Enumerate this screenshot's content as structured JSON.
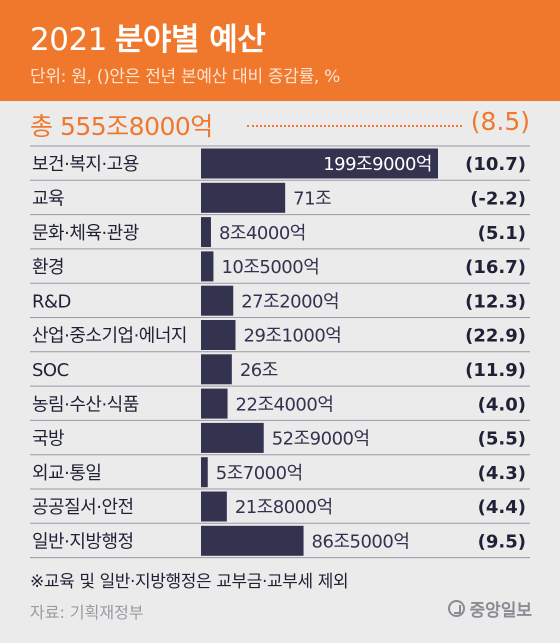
{
  "header": {
    "year": "2021",
    "title": "분야별 예산",
    "subtitle": "단위: 원, ()안은 전년 본예산 대비 증감률, %"
  },
  "total": {
    "label": "총 555조8000억",
    "change": "(8.5)"
  },
  "colors": {
    "accent": "#f0782d",
    "bar": "#33334f",
    "background": "#ecebeb"
  },
  "chart_data": {
    "type": "bar",
    "orientation": "horizontal",
    "unit": "원",
    "categories": [
      "보건·복지·고용",
      "교육",
      "문화·체육·관광",
      "환경",
      "R&D",
      "산업·중소기업·에너지",
      "SOC",
      "농림·수산·식품",
      "국방",
      "외교·통일",
      "공공질서·안전",
      "일반·지방행정"
    ],
    "values": [
      199.9,
      71,
      8.4,
      10.5,
      27.2,
      29.1,
      26,
      22.4,
      52.9,
      5.7,
      21.8,
      86.5
    ],
    "value_labels": [
      "199조9000억",
      "71조",
      "8조4000억",
      "10조5000억",
      "27조2000억",
      "29조1000억",
      "26조",
      "22조4000억",
      "52조9000억",
      "5조7000억",
      "21조8000억",
      "86조5000억"
    ],
    "change_labels": [
      "(10.7)",
      "(-2.2)",
      "(5.1)",
      "(16.7)",
      "(12.3)",
      "(22.9)",
      "(11.9)",
      "(4.0)",
      "(5.5)",
      "(4.3)",
      "(4.4)",
      "(9.5)"
    ],
    "xlim": [
      0,
      199.9
    ]
  },
  "footer": {
    "note": "※교육 및 일반·지방행정은 교부금·교부세 제외",
    "source": "자료: 기획재정부",
    "logo": "중앙일보"
  }
}
